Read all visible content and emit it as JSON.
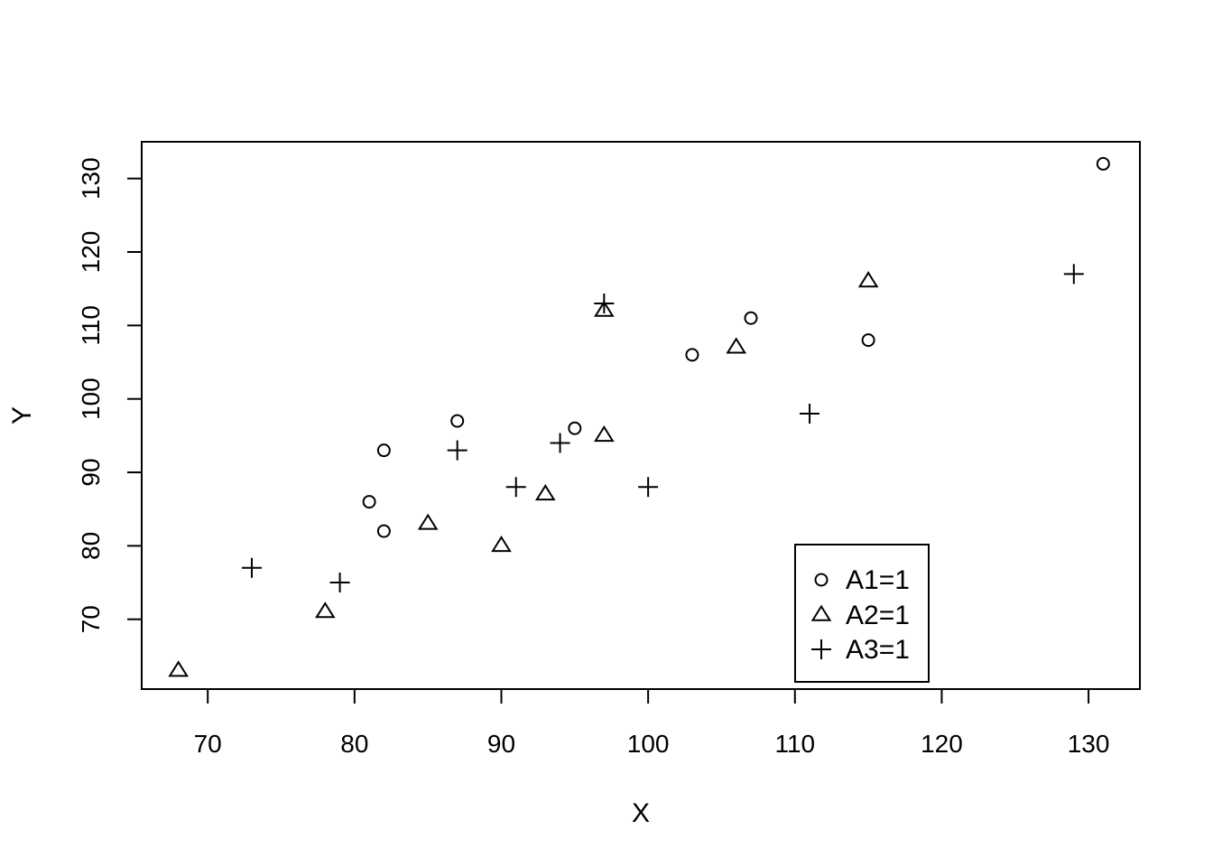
{
  "chart_data": {
    "type": "scatter",
    "title": "",
    "xlabel": "X",
    "ylabel": "Y",
    "xlim": [
      65.5,
      133.5
    ],
    "ylim": [
      60.5,
      135
    ],
    "xticks": [
      70,
      80,
      90,
      100,
      110,
      120,
      130
    ],
    "yticks": [
      70,
      80,
      90,
      100,
      110,
      120,
      130
    ],
    "grid": false,
    "legend_position": "bottom-right",
    "series": [
      {
        "name": "A1=1",
        "marker": "circle",
        "color": "#000000",
        "points": [
          {
            "x": 81,
            "y": 86
          },
          {
            "x": 82,
            "y": 93
          },
          {
            "x": 82,
            "y": 82
          },
          {
            "x": 87,
            "y": 97
          },
          {
            "x": 95,
            "y": 96
          },
          {
            "x": 103,
            "y": 106
          },
          {
            "x": 107,
            "y": 111
          },
          {
            "x": 115,
            "y": 108
          },
          {
            "x": 131,
            "y": 132
          }
        ]
      },
      {
        "name": "A2=1",
        "marker": "triangle",
        "color": "#000000",
        "points": [
          {
            "x": 68,
            "y": 63
          },
          {
            "x": 78,
            "y": 71
          },
          {
            "x": 85,
            "y": 83
          },
          {
            "x": 90,
            "y": 80
          },
          {
            "x": 93,
            "y": 87
          },
          {
            "x": 97,
            "y": 112
          },
          {
            "x": 97,
            "y": 95
          },
          {
            "x": 106,
            "y": 107
          },
          {
            "x": 115,
            "y": 116
          }
        ]
      },
      {
        "name": "A3=1",
        "marker": "plus",
        "color": "#000000",
        "points": [
          {
            "x": 73,
            "y": 77
          },
          {
            "x": 79,
            "y": 75
          },
          {
            "x": 87,
            "y": 93
          },
          {
            "x": 91,
            "y": 88
          },
          {
            "x": 94,
            "y": 94
          },
          {
            "x": 97,
            "y": 113
          },
          {
            "x": 100,
            "y": 88
          },
          {
            "x": 111,
            "y": 98
          },
          {
            "x": 129,
            "y": 117
          }
        ]
      }
    ]
  }
}
